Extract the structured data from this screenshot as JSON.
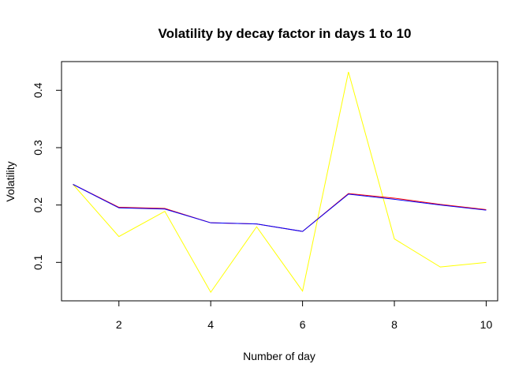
{
  "chart_data": {
    "type": "line",
    "title": "Volatility by decay factor in days 1 to 10",
    "xlabel": "Number of day",
    "ylabel": "Volatility",
    "x": [
      1,
      2,
      3,
      4,
      5,
      6,
      7,
      8,
      9,
      10
    ],
    "xlim": [
      0.75,
      10.25
    ],
    "ylim": [
      0.033,
      0.45
    ],
    "xticks": [
      2,
      4,
      6,
      8,
      10
    ],
    "yticks": [
      0.1,
      0.2,
      0.3,
      0.4
    ],
    "grid": false,
    "series": [
      {
        "color": "#ffff00",
        "values": [
          0.236,
          0.145,
          0.189,
          0.048,
          0.162,
          0.05,
          0.432,
          0.141,
          0.092,
          0.1
        ]
      },
      {
        "color": "#ff0000",
        "values": [
          0.236,
          0.196,
          0.194,
          0.169,
          0.167,
          0.154,
          0.22,
          0.212,
          0.201,
          0.192
        ]
      },
      {
        "color": "#0000ff",
        "values": [
          0.236,
          0.195,
          0.193,
          0.169,
          0.167,
          0.154,
          0.219,
          0.21,
          0.2,
          0.191
        ]
      }
    ]
  }
}
